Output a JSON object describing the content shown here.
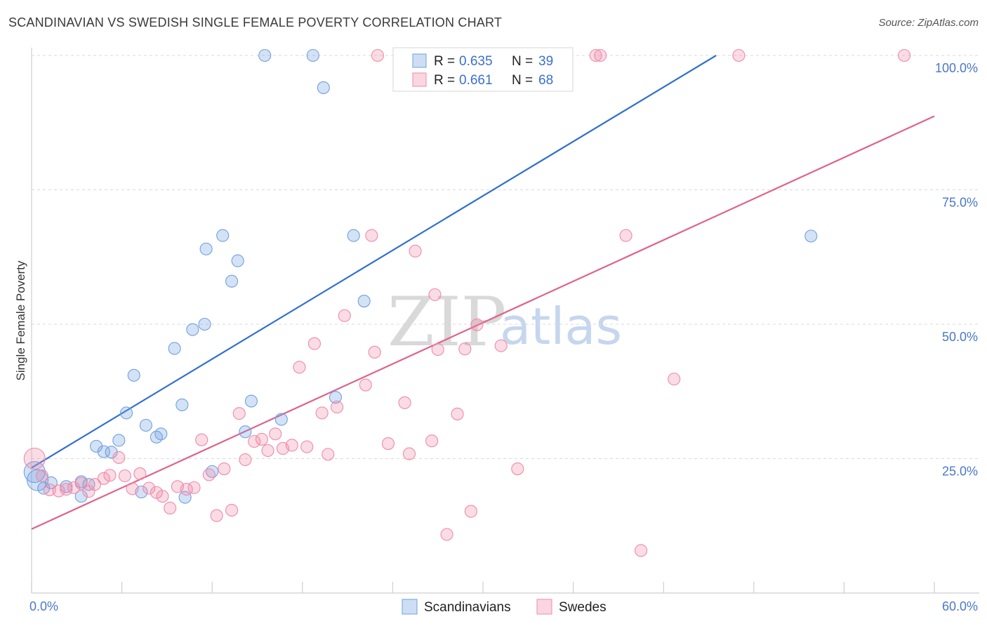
{
  "title": "SCANDINAVIAN VS SWEDISH SINGLE FEMALE POVERTY CORRELATION CHART",
  "source": "Source: ZipAtlas.com",
  "chart_data": {
    "type": "scatter",
    "title": "SCANDINAVIAN VS SWEDISH SINGLE FEMALE POVERTY CORRELATION CHART",
    "xlabel": "",
    "ylabel": "Single Female Poverty",
    "xlim": [
      0,
      60
    ],
    "ylim": [
      0,
      100
    ],
    "x_tick_labels": [
      "0.0%",
      "60.0%"
    ],
    "y_ticks": [
      25,
      50,
      75,
      100
    ],
    "y_tick_labels": [
      "25.0%",
      "50.0%",
      "75.0%",
      "100.0%"
    ],
    "grid": "horizontal dashed",
    "legend": "top-center",
    "watermark": [
      "ZIP",
      "atlas"
    ],
    "series": [
      {
        "name": "Scandinavians",
        "color": "#6fa0e0",
        "line_color": "#2f6fd0",
        "R": "0.635",
        "N": "39",
        "trend": [
          [
            0,
            23.3
          ],
          [
            45.5,
            100
          ]
        ],
        "points": [
          [
            0.2,
            22.5
          ],
          [
            0.8,
            19.5
          ],
          [
            1.3,
            20.5
          ],
          [
            2.3,
            19.8
          ],
          [
            3.3,
            18.0
          ],
          [
            3.3,
            20.7
          ],
          [
            3.8,
            20.2
          ],
          [
            4.3,
            27.3
          ],
          [
            4.8,
            26.3
          ],
          [
            5.3,
            26.2
          ],
          [
            5.8,
            28.4
          ],
          [
            6.3,
            33.5
          ],
          [
            6.8,
            40.5
          ],
          [
            7.3,
            18.8
          ],
          [
            7.6,
            31.2
          ],
          [
            8.3,
            29.0
          ],
          [
            8.6,
            29.6
          ],
          [
            9.5,
            45.5
          ],
          [
            10.0,
            35.0
          ],
          [
            10.2,
            17.8
          ],
          [
            10.7,
            49.0
          ],
          [
            11.5,
            50.0
          ],
          [
            11.6,
            64.0
          ],
          [
            12.0,
            22.6
          ],
          [
            12.7,
            66.5
          ],
          [
            13.3,
            58.0
          ],
          [
            13.7,
            61.8
          ],
          [
            14.2,
            30.0
          ],
          [
            14.6,
            35.7
          ],
          [
            15.5,
            100.0
          ],
          [
            16.6,
            32.3
          ],
          [
            18.7,
            100.0
          ],
          [
            19.4,
            94.0
          ],
          [
            20.2,
            36.4
          ],
          [
            21.4,
            66.5
          ],
          [
            22.1,
            54.3
          ],
          [
            25.6,
            100.0
          ],
          [
            51.8,
            66.4
          ],
          [
            0.4,
            21.0
          ]
        ]
      },
      {
        "name": "Swedes",
        "color": "#f08aaa",
        "line_color": "#e0628a",
        "R": "0.661",
        "N": "68",
        "trend": [
          [
            0,
            11.9
          ],
          [
            60,
            88.7
          ]
        ],
        "points": [
          [
            0.2,
            25.0
          ],
          [
            0.7,
            21.8
          ],
          [
            1.2,
            19.2
          ],
          [
            1.8,
            19.0
          ],
          [
            2.3,
            19.3
          ],
          [
            2.8,
            19.6
          ],
          [
            3.3,
            20.4
          ],
          [
            3.8,
            18.9
          ],
          [
            4.2,
            20.2
          ],
          [
            4.8,
            21.3
          ],
          [
            5.2,
            21.9
          ],
          [
            5.8,
            25.2
          ],
          [
            6.2,
            21.8
          ],
          [
            6.7,
            19.4
          ],
          [
            7.2,
            22.2
          ],
          [
            7.8,
            19.5
          ],
          [
            8.3,
            18.7
          ],
          [
            8.7,
            18.0
          ],
          [
            9.2,
            15.8
          ],
          [
            9.7,
            19.8
          ],
          [
            10.3,
            19.3
          ],
          [
            10.8,
            19.6
          ],
          [
            11.3,
            28.5
          ],
          [
            11.8,
            22.0
          ],
          [
            12.3,
            14.4
          ],
          [
            12.8,
            23.1
          ],
          [
            13.3,
            15.4
          ],
          [
            13.8,
            33.4
          ],
          [
            14.2,
            24.8
          ],
          [
            14.8,
            28.2
          ],
          [
            15.3,
            28.6
          ],
          [
            15.7,
            26.5
          ],
          [
            16.2,
            29.6
          ],
          [
            16.7,
            26.9
          ],
          [
            17.3,
            27.5
          ],
          [
            17.8,
            42.0
          ],
          [
            18.3,
            27.2
          ],
          [
            18.8,
            46.4
          ],
          [
            19.3,
            33.5
          ],
          [
            19.7,
            25.8
          ],
          [
            20.3,
            34.6
          ],
          [
            20.8,
            51.6
          ],
          [
            22.2,
            38.7
          ],
          [
            22.6,
            66.5
          ],
          [
            22.8,
            44.8
          ],
          [
            23.0,
            100.0
          ],
          [
            23.7,
            27.8
          ],
          [
            24.8,
            35.4
          ],
          [
            25.1,
            25.9
          ],
          [
            25.5,
            63.6
          ],
          [
            26.6,
            28.3
          ],
          [
            26.8,
            55.5
          ],
          [
            27.0,
            45.3
          ],
          [
            27.6,
            10.9
          ],
          [
            28.3,
            33.3
          ],
          [
            28.8,
            45.4
          ],
          [
            29.2,
            15.2
          ],
          [
            29.6,
            49.9
          ],
          [
            31.2,
            46.0
          ],
          [
            32.0,
            100.0
          ],
          [
            32.3,
            23.1
          ],
          [
            37.5,
            100.0
          ],
          [
            37.8,
            100.0
          ],
          [
            39.5,
            66.5
          ],
          [
            40.5,
            7.9
          ],
          [
            42.7,
            39.8
          ],
          [
            47.0,
            100.0
          ],
          [
            58.0,
            100.0
          ]
        ]
      }
    ]
  },
  "legend": {
    "r_label": "R =",
    "n_label": "N ="
  }
}
